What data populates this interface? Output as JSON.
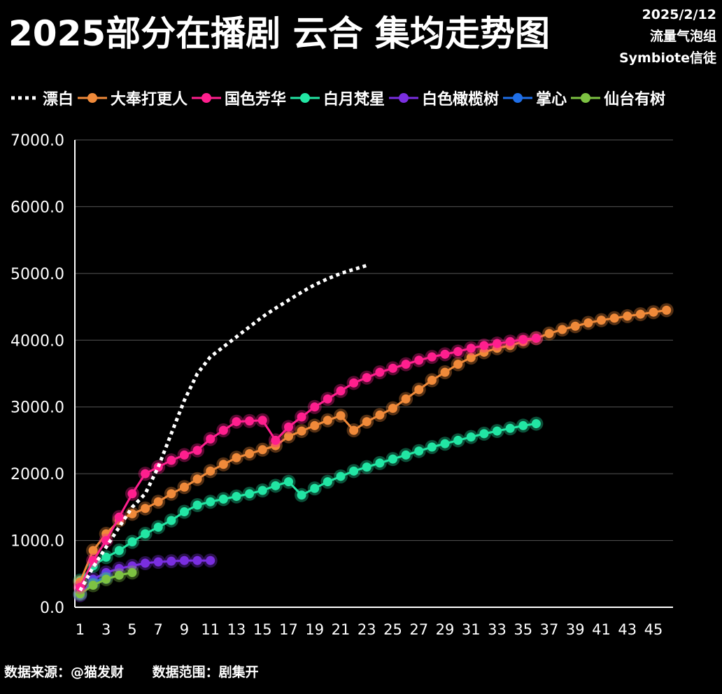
{
  "header": {
    "title": "2025部分在播剧 云合 集均走势图",
    "date": "2025/2/12",
    "group": "流量气泡组",
    "author": "Symbiote信徒"
  },
  "footer": {
    "source": "数据来源：@猫发财",
    "range": "数据范围：剧集开"
  },
  "colors": {
    "background": "#000000",
    "grid": "#555555",
    "axis": "#ffffff",
    "漂白": "#ffffff",
    "大奉打更人": "#f08a3a",
    "国色芳华": "#ff1f8e",
    "白月梵星": "#22e6a4",
    "白色橄榄树": "#7a2ee0",
    "掌心": "#1f6fe8",
    "仙台有树": "#7dc242"
  },
  "chart_data": {
    "type": "line",
    "ylim": [
      0,
      7000
    ],
    "xlim": [
      0.6,
      46.5
    ],
    "y_ticks": [
      "0.0",
      "1000.0",
      "2000.0",
      "3000.0",
      "4000.0",
      "5000.0",
      "6000.0",
      "7000.0"
    ],
    "x_ticks": [
      "1",
      "3",
      "5",
      "7",
      "9",
      "11",
      "13",
      "15",
      "17",
      "19",
      "21",
      "23",
      "25",
      "27",
      "29",
      "31",
      "33",
      "35",
      "37",
      "39",
      "41",
      "43",
      "45"
    ],
    "legend_position": "top",
    "grid": true,
    "series": [
      {
        "name": "漂白",
        "style": "dotted",
        "x": [
          1,
          2,
          3,
          4,
          5,
          6,
          7,
          8,
          9,
          10,
          11,
          12,
          13,
          14,
          15,
          16,
          17,
          18,
          19,
          20,
          21,
          22,
          23
        ],
        "values": [
          250,
          600,
          900,
          1200,
          1500,
          1700,
          2100,
          2600,
          3100,
          3500,
          3750,
          3900,
          4050,
          4200,
          4350,
          4480,
          4600,
          4720,
          4830,
          4920,
          5000,
          5060,
          5120
        ]
      },
      {
        "name": "大奉打更人",
        "x": [
          1,
          2,
          3,
          4,
          5,
          6,
          7,
          8,
          9,
          10,
          11,
          12,
          13,
          14,
          15,
          16,
          17,
          18,
          19,
          20,
          21,
          22,
          23,
          24,
          25,
          26,
          27,
          28,
          29,
          30,
          31,
          32,
          33,
          34,
          35,
          36,
          37,
          38,
          39,
          40,
          41,
          42,
          43,
          44,
          45,
          46
        ],
        "values": [
          380,
          850,
          1100,
          1300,
          1400,
          1480,
          1580,
          1700,
          1800,
          1920,
          2040,
          2140,
          2240,
          2300,
          2360,
          2420,
          2560,
          2640,
          2720,
          2800,
          2870,
          2650,
          2780,
          2880,
          2980,
          3120,
          3260,
          3400,
          3520,
          3640,
          3740,
          3820,
          3880,
          3920,
          3980,
          4030,
          4100,
          4160,
          4210,
          4260,
          4300,
          4330,
          4360,
          4390,
          4420,
          4450
        ]
      },
      {
        "name": "国色芳华",
        "x": [
          1,
          2,
          3,
          4,
          5,
          6,
          7,
          8,
          9,
          10,
          11,
          12,
          13,
          14,
          15,
          16,
          17,
          18,
          19,
          20,
          21,
          22,
          23,
          24,
          25,
          26,
          27,
          28,
          29,
          30,
          31,
          32,
          33,
          34,
          35,
          36
        ],
        "values": [
          300,
          700,
          1000,
          1350,
          1700,
          2000,
          2100,
          2200,
          2280,
          2350,
          2520,
          2650,
          2780,
          2790,
          2800,
          2500,
          2700,
          2850,
          3000,
          3120,
          3240,
          3360,
          3440,
          3520,
          3580,
          3640,
          3700,
          3750,
          3790,
          3830,
          3880,
          3920,
          3950,
          3980,
          4010,
          4030
        ]
      },
      {
        "name": "白月梵星",
        "x": [
          1,
          2,
          3,
          4,
          5,
          6,
          7,
          8,
          9,
          10,
          11,
          12,
          13,
          14,
          15,
          16,
          17,
          18,
          19,
          20,
          21,
          22,
          23,
          24,
          25,
          26,
          27,
          28,
          29,
          30,
          31,
          32,
          33,
          34,
          35,
          36
        ],
        "values": [
          400,
          620,
          750,
          850,
          980,
          1100,
          1200,
          1300,
          1430,
          1530,
          1580,
          1620,
          1660,
          1700,
          1750,
          1820,
          1880,
          1680,
          1780,
          1880,
          1960,
          2040,
          2100,
          2160,
          2220,
          2280,
          2340,
          2400,
          2450,
          2500,
          2550,
          2600,
          2640,
          2680,
          2720,
          2750
        ]
      },
      {
        "name": "白色橄榄树",
        "x": [
          1,
          2,
          3,
          4,
          5,
          6,
          7,
          8,
          9,
          10,
          11
        ],
        "values": [
          180,
          420,
          520,
          580,
          620,
          660,
          680,
          690,
          700,
          700,
          700
        ]
      },
      {
        "name": "掌心",
        "x": [
          1,
          2,
          3
        ],
        "values": [
          200,
          370,
          450
        ]
      },
      {
        "name": "仙台有树",
        "x": [
          1,
          2,
          3,
          4,
          5
        ],
        "values": [
          200,
          330,
          420,
          480,
          520
        ]
      }
    ]
  }
}
